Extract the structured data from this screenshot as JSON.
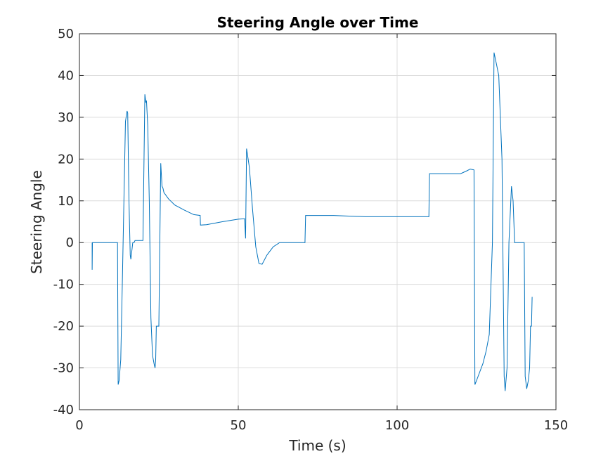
{
  "chart_data": {
    "type": "line",
    "title": "Steering Angle over Time",
    "xlabel": "Time (s)",
    "ylabel": "Steering Angle",
    "xlim": [
      0,
      150
    ],
    "ylim": [
      -40,
      50
    ],
    "xticks": [
      0,
      50,
      100,
      150
    ],
    "yticks": [
      -40,
      -30,
      -20,
      -10,
      0,
      10,
      20,
      30,
      40,
      50
    ],
    "grid": true,
    "line_color": "#0072BD",
    "series": [
      {
        "x": [
          4,
          4,
          4.1,
          12,
          12.2,
          12.5,
          13,
          13.5,
          14,
          14.5,
          15,
          15.2,
          15.6,
          16,
          16.2,
          16.8,
          17.2,
          17.5,
          18,
          19,
          20,
          20.6,
          20.9,
          21.1,
          21.5,
          22,
          22.5,
          23,
          23.5,
          23.8,
          24,
          24.2,
          24.6,
          25,
          25.6,
          26,
          26.3,
          26.6,
          28,
          30,
          33,
          36,
          38,
          38.1,
          40,
          45,
          50,
          52,
          52.3,
          52.6,
          53.5,
          54.5,
          55.5,
          56.5,
          57.5,
          59,
          61,
          63,
          66,
          70,
          71,
          71.2,
          80,
          90,
          100,
          110,
          110.2,
          120,
          122,
          123,
          124.2,
          124.5,
          125,
          126,
          127,
          128,
          129,
          130,
          130.5,
          131.2,
          132,
          133,
          133.7,
          134,
          134.6,
          135.2,
          136,
          136.5,
          137,
          138,
          138.5,
          140,
          140.3,
          140.8,
          141.3,
          141.7,
          142,
          142.3,
          142.5
        ],
        "y": [
          0,
          -6.5,
          0,
          0,
          -34,
          -33,
          -28,
          -10,
          10,
          29,
          31.5,
          31,
          10,
          -3,
          -4,
          0,
          0,
          0.5,
          0.5,
          0.5,
          0.5,
          35.5,
          33.5,
          34,
          28,
          10,
          -18,
          -27,
          -29,
          -30,
          -28,
          -20,
          -20,
          -20,
          19,
          13.5,
          13,
          12,
          10.5,
          9,
          7.8,
          6.7,
          6.5,
          4.2,
          4.3,
          5,
          5.6,
          5.7,
          1,
          22.5,
          18,
          8,
          -1,
          -5,
          -5.2,
          -3,
          -1,
          0,
          0,
          0,
          0,
          6.5,
          6.5,
          6.2,
          6.2,
          6.2,
          16.5,
          16.5,
          17.2,
          17.6,
          17.4,
          -34,
          -33,
          -31,
          -29,
          -26,
          -22,
          0,
          45.5,
          43,
          40,
          20,
          -32,
          -35.5,
          -30,
          0,
          13.5,
          10,
          0,
          0,
          0,
          0,
          -32,
          -35,
          -33,
          -30,
          -20,
          -20,
          -13
        ]
      }
    ]
  }
}
